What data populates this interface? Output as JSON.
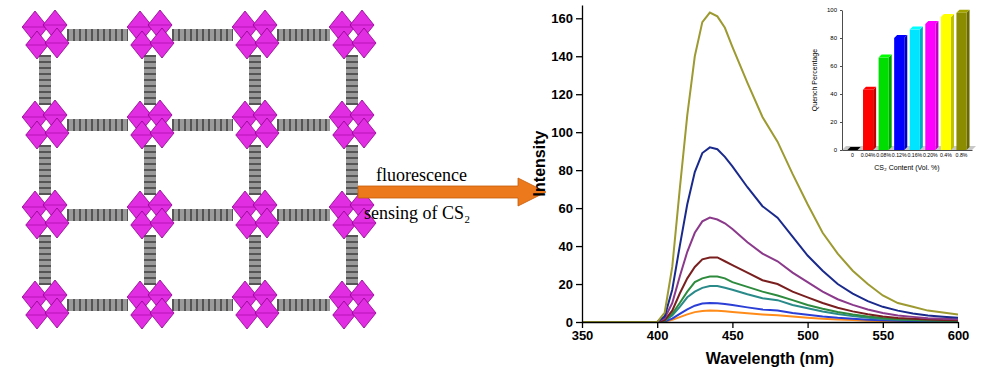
{
  "chart_data": [
    {
      "type": "line",
      "x_label": "Wavelength (nm)",
      "y_label": "Intensity",
      "annotations": [
        "fluorescence",
        "sensing of CS₂"
      ],
      "x": [
        350,
        400,
        405,
        410,
        415,
        420,
        425,
        430,
        435,
        440,
        445,
        450,
        460,
        470,
        480,
        490,
        500,
        510,
        520,
        530,
        540,
        550,
        560,
        570,
        580,
        590,
        600
      ],
      "xlim": [
        350,
        600
      ],
      "xticks": [
        350,
        400,
        450,
        500,
        550,
        600
      ],
      "ylim": [
        0,
        167
      ],
      "yticks": [
        0,
        20,
        40,
        60,
        80,
        100,
        120,
        140,
        160
      ],
      "series": [
        {
          "color": "#ff8c1a",
          "values": [
            0,
            0,
            0.2,
            1.1,
            2.6,
            4,
            5.2,
            5.8,
            6,
            5.9,
            5.7,
            5.3,
            4.6,
            4,
            3.5,
            2.9,
            2.3,
            1.7,
            1.3,
            1,
            0.7,
            0.5,
            0.4,
            0.3,
            0.2,
            0.2,
            0.2
          ]
        },
        {
          "color": "#2b3fd6",
          "values": [
            0,
            0,
            0.3,
            1.8,
            4.3,
            6.7,
            8.6,
            9.7,
            10,
            9.9,
            9.5,
            8.9,
            7.7,
            6.6,
            6,
            4.8,
            3.8,
            2.9,
            2.2,
            1.7,
            1.2,
            0.9,
            0.6,
            0.5,
            0.4,
            0.3,
            0.3
          ]
        },
        {
          "color": "#2a8a8a",
          "values": [
            0,
            0,
            0.6,
            3.4,
            8,
            13,
            16,
            18,
            19,
            19,
            18,
            17,
            14.6,
            12.5,
            11.5,
            9,
            7.2,
            5.5,
            4.2,
            3.1,
            2.3,
            1.6,
            1.2,
            0.9,
            0.7,
            0.6,
            0.5
          ]
        },
        {
          "color": "#2e8b3e",
          "values": [
            0,
            0,
            0.7,
            4.3,
            10,
            16,
            21,
            23,
            24,
            24,
            23,
            21,
            18.5,
            16,
            14,
            11.5,
            9,
            7,
            5.3,
            4,
            2.9,
            2.1,
            1.5,
            1.2,
            0.9,
            0.7,
            0.6
          ]
        },
        {
          "color": "#7a1f1f",
          "values": [
            0,
            0,
            1,
            6,
            15,
            23,
            29,
            33,
            34,
            34,
            32,
            30,
            26,
            22,
            20,
            16,
            13,
            10,
            7.5,
            5.6,
            4.1,
            2.9,
            2.1,
            1.7,
            1.3,
            1,
            0.9
          ]
        },
        {
          "color": "#8b3a8b",
          "values": [
            0,
            0,
            2,
            10,
            24,
            37,
            47,
            53,
            55,
            54,
            52,
            49,
            42,
            36,
            32,
            26,
            21,
            16,
            12,
            9,
            6.6,
            4.7,
            3.4,
            2.7,
            2,
            1.7,
            1.4
          ]
        },
        {
          "color": "#1a2a8c",
          "values": [
            0,
            0,
            3,
            17,
            40,
            62,
            79,
            89,
            92,
            91,
            87,
            82,
            71,
            61,
            55,
            45,
            35,
            27,
            20,
            15,
            11,
            8,
            6,
            4.5,
            3.4,
            2.8,
            2.3
          ]
        },
        {
          "color": "#9c9a30",
          "values": [
            0,
            0,
            5,
            29,
            70,
            109,
            140,
            158,
            163,
            161,
            155,
            145,
            126,
            108,
            95,
            78,
            62,
            47,
            36,
            27,
            20,
            14,
            10,
            8,
            6,
            5,
            4
          ]
        }
      ]
    },
    {
      "type": "bar",
      "x_label": "CS₂ Content (Vol. %)",
      "y_label": "Quench Percentage",
      "categories": [
        "0",
        "0.04%",
        "0.08%",
        "0.12%",
        "0.16%",
        "0.20%",
        "0.4%",
        "0.8%"
      ],
      "values": [
        0,
        43,
        66,
        80,
        86,
        90,
        95,
        98
      ],
      "colors": [
        "#000000",
        "#ff0000",
        "#00dd00",
        "#0000ff",
        "#00e5ff",
        "#ff00ff",
        "#ffff00",
        "#8c8c00"
      ],
      "ylim": [
        0,
        100
      ],
      "yticks": [
        0,
        20,
        40,
        60,
        80,
        100
      ]
    }
  ]
}
